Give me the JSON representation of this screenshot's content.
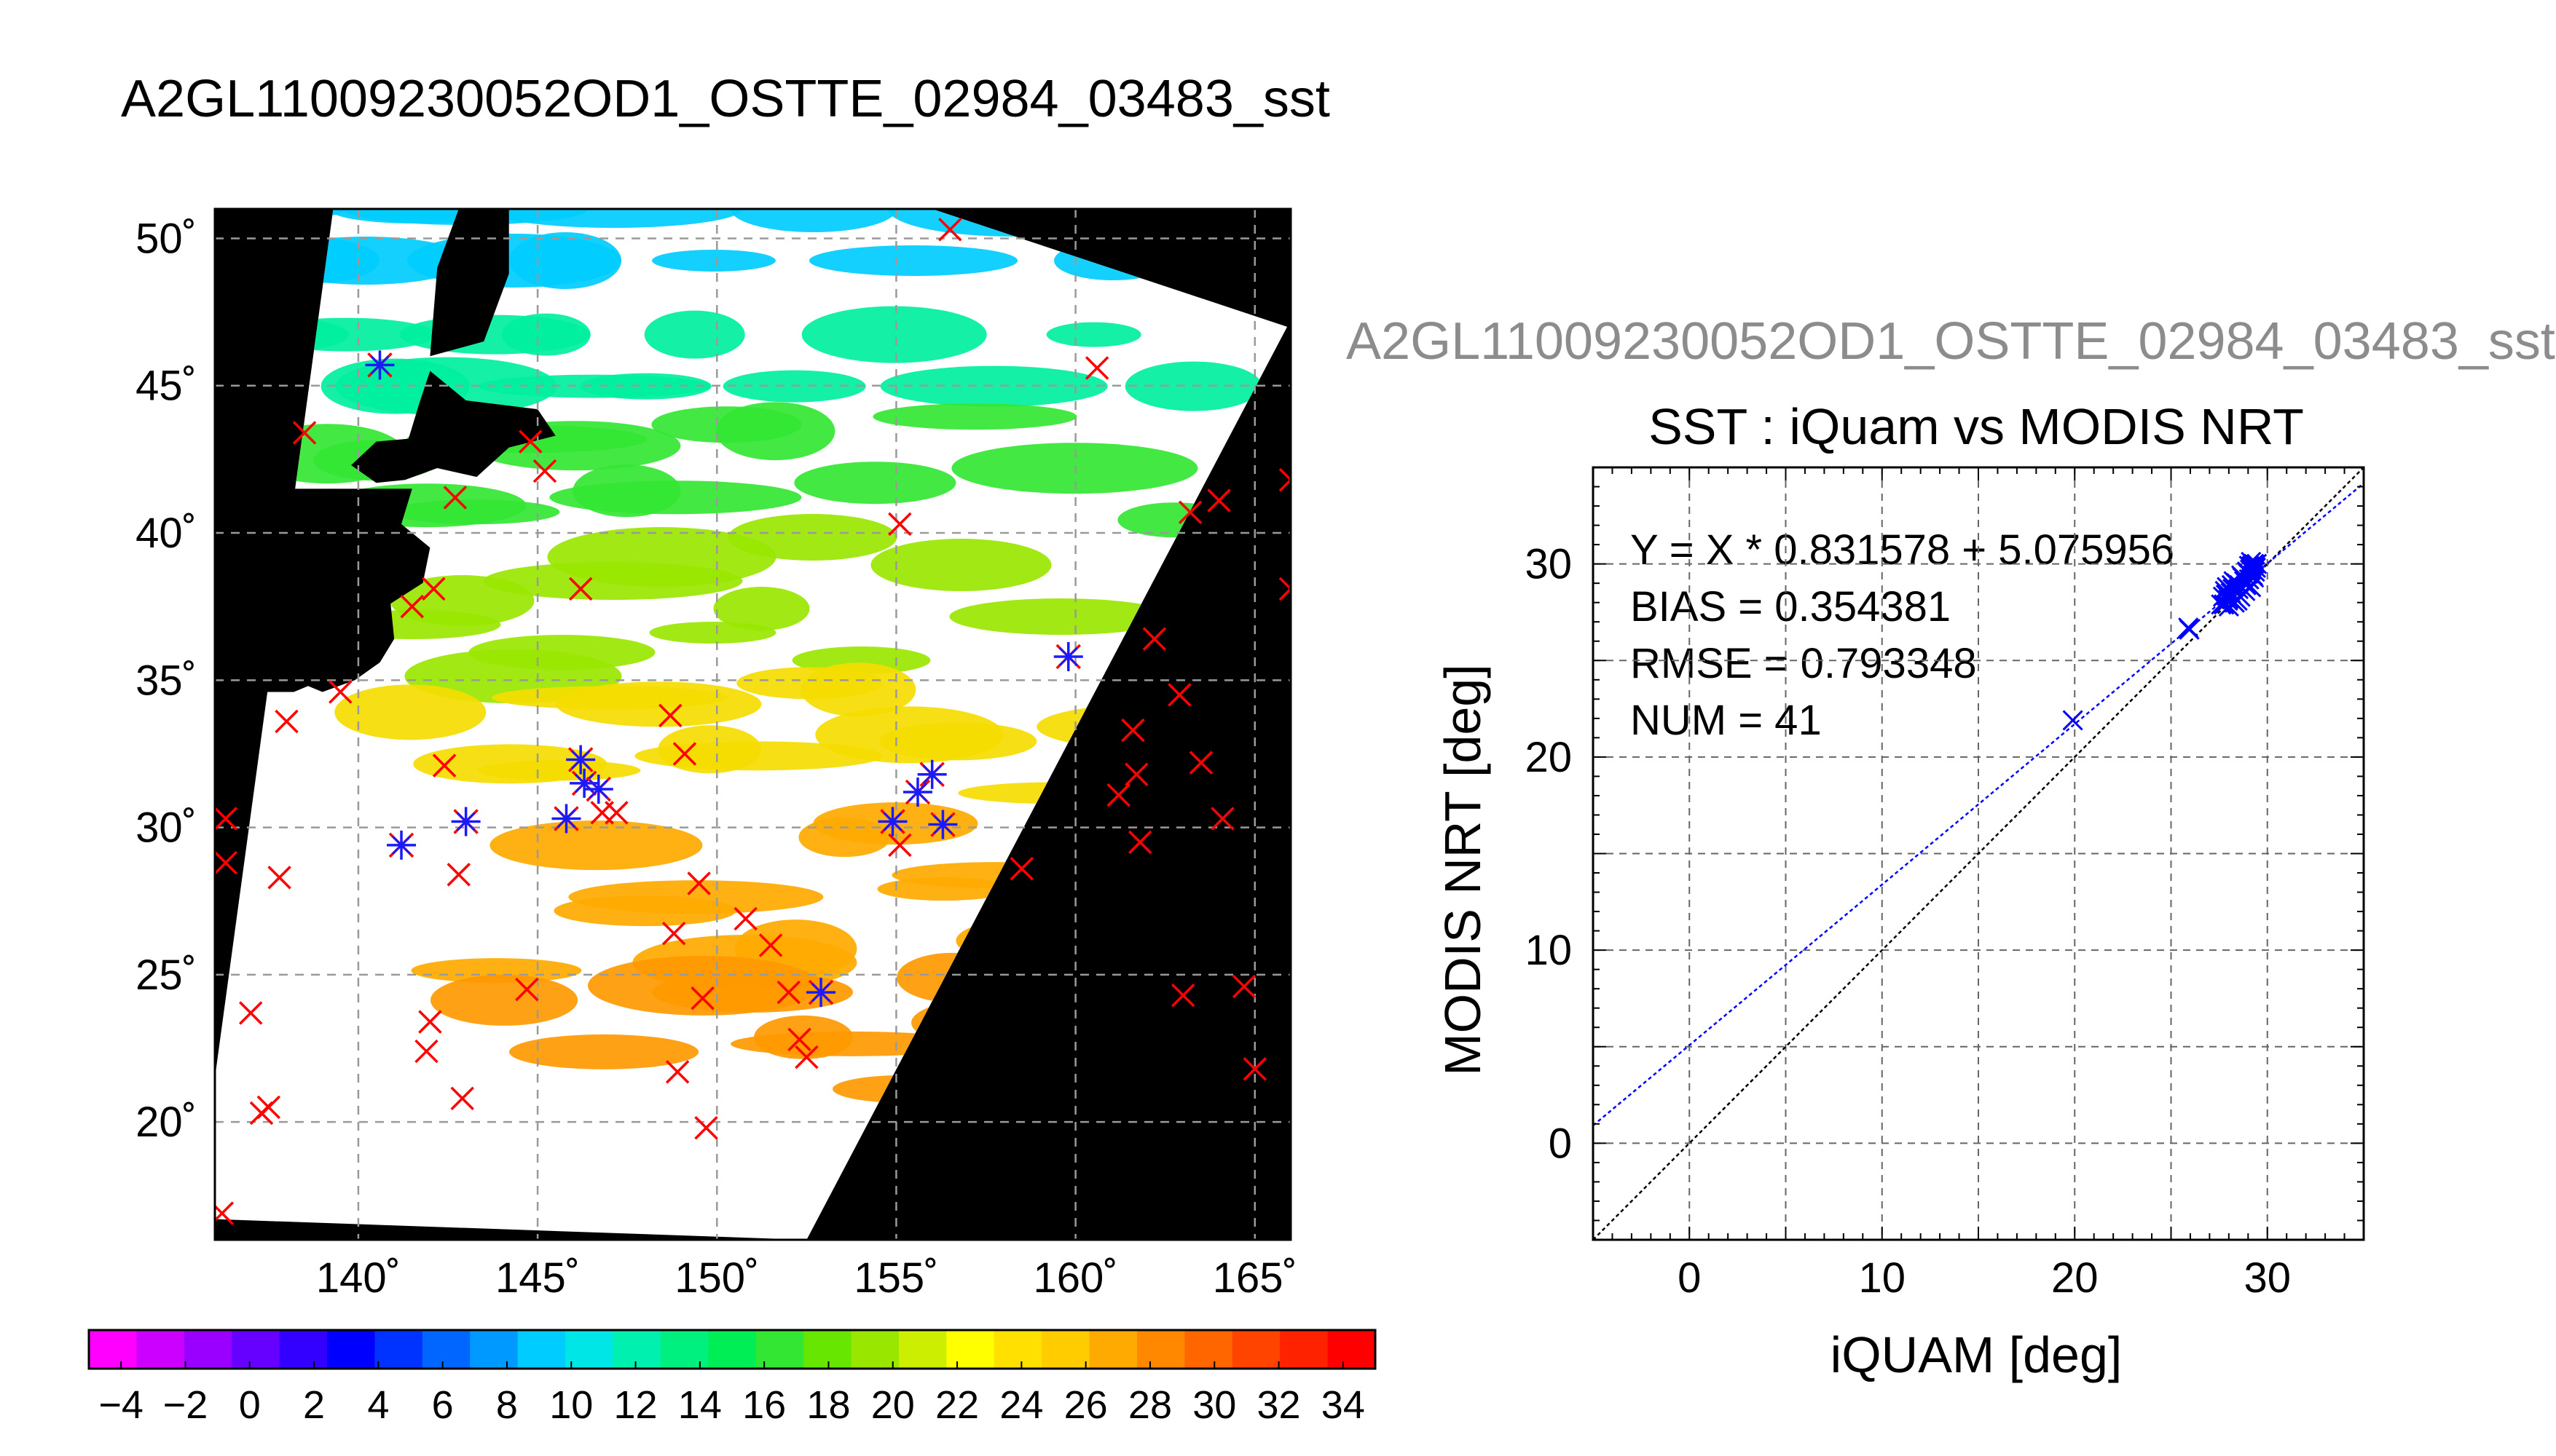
{
  "page": {
    "title": "A2GL11009230052OD1_OSTTE_02984_03483_sst",
    "scatter_subtitle": "A2GL11009230052OD1_OSTTE_02984_03483_sst"
  },
  "map": {
    "lon_ticks": [
      140,
      145,
      150,
      155,
      160,
      165
    ],
    "lat_ticks": [
      20,
      25,
      30,
      35,
      40,
      45,
      50
    ],
    "lon_range": [
      136,
      166
    ],
    "lat_range": [
      16,
      51
    ],
    "degree_symbol": "˚",
    "colors": {
      "land": "#000000",
      "no_data": "#000000",
      "cloud": "#ffffff",
      "grid": "#9a9a9a"
    },
    "sst_field_bands": [
      {
        "lat_max": 51,
        "lat_min": 47.5,
        "sst": 10,
        "color": "#00ccff"
      },
      {
        "lat_max": 47.5,
        "lat_min": 44,
        "sst": 16,
        "color": "#00f0a0"
      },
      {
        "lat_max": 44,
        "lat_min": 40,
        "sst": 20,
        "color": "#33e633"
      },
      {
        "lat_max": 40,
        "lat_min": 35,
        "sst": 24,
        "color": "#99e600"
      },
      {
        "lat_max": 35,
        "lat_min": 31,
        "sst": 27,
        "color": "#f5dc00"
      },
      {
        "lat_max": 31,
        "lat_min": 25,
        "sst": 29,
        "color": "#ffaa00"
      },
      {
        "lat_max": 25,
        "lat_min": 21,
        "sst": 30,
        "color": "#ff9900"
      }
    ],
    "matchups_x": [
      [
        136.3,
        28.8
      ],
      [
        136.3,
        30.3
      ],
      [
        136.2,
        16.9
      ],
      [
        137,
        23.7
      ],
      [
        137.3,
        20.3
      ],
      [
        137.5,
        20.5
      ],
      [
        137.8,
        28.3
      ],
      [
        138,
        33.6
      ],
      [
        138.5,
        43.4
      ],
      [
        139.5,
        34.6
      ],
      [
        141.5,
        37.5
      ],
      [
        142,
        23.4
      ],
      [
        141.9,
        22.4
      ],
      [
        142.1,
        38.1
      ],
      [
        142.4,
        32.1
      ],
      [
        142.7,
        41.2
      ],
      [
        142.8,
        28.4
      ],
      [
        142.9,
        20.8
      ],
      [
        144.7,
        24.5
      ],
      [
        144.8,
        43.1
      ],
      [
        145.2,
        42.1
      ],
      [
        146.2,
        38.1
      ],
      [
        146.8,
        30.5
      ],
      [
        147.2,
        30.5
      ],
      [
        148.7,
        33.8
      ],
      [
        149.1,
        32.5
      ],
      [
        148.8,
        26.4
      ],
      [
        148.9,
        21.7
      ],
      [
        149.5,
        28.1
      ],
      [
        149.6,
        24.2
      ],
      [
        149.7,
        19.8
      ],
      [
        150.8,
        26.9
      ],
      [
        151.5,
        26
      ],
      [
        152,
        24.4
      ],
      [
        152.3,
        22.8
      ],
      [
        152.5,
        22.2
      ],
      [
        155.1,
        40.3
      ],
      [
        155.1,
        29.4
      ],
      [
        156.5,
        50.3
      ],
      [
        158.5,
        28.6
      ],
      [
        160.6,
        45.6
      ],
      [
        161.2,
        31.1
      ],
      [
        161.6,
        33.3
      ],
      [
        161.7,
        31.8
      ],
      [
        161.8,
        29.5
      ],
      [
        162.2,
        36.4
      ],
      [
        162.9,
        34.5
      ],
      [
        163,
        24.3
      ],
      [
        163.2,
        40.7
      ],
      [
        163.5,
        32.2
      ],
      [
        164,
        41.1
      ],
      [
        164.1,
        30.3
      ],
      [
        164.7,
        24.6
      ],
      [
        165,
        21.8
      ],
      [
        166,
        41.8
      ],
      [
        166,
        38.1
      ]
    ],
    "matchups_star": [
      [
        140.6,
        45.7
      ],
      [
        141.2,
        29.4
      ],
      [
        143,
        30.2
      ],
      [
        145.8,
        30.3
      ],
      [
        146.2,
        32.3
      ],
      [
        146.3,
        31.5
      ],
      [
        146.7,
        31.3
      ],
      [
        152.9,
        24.4
      ],
      [
        154.9,
        30.2
      ],
      [
        155.6,
        31.2
      ],
      [
        156,
        31.8
      ],
      [
        156.3,
        30.1
      ],
      [
        159.8,
        35.8
      ]
    ]
  },
  "colorbar": {
    "ticks": [
      -4,
      -2,
      0,
      2,
      4,
      6,
      8,
      10,
      12,
      14,
      16,
      18,
      20,
      22,
      24,
      26,
      28,
      30,
      32,
      34
    ],
    "range": [
      -5,
      35
    ],
    "colors": [
      "#ff00ff",
      "#cc00ff",
      "#9900ff",
      "#6600ff",
      "#3300ff",
      "#0000ff",
      "#0033ff",
      "#0066ff",
      "#0099ff",
      "#00ccff",
      "#00e6e6",
      "#00f0b0",
      "#00f080",
      "#00ee55",
      "#33e633",
      "#66e600",
      "#99e600",
      "#ccee00",
      "#ffff00",
      "#ffe000",
      "#ffcc00",
      "#ffaa00",
      "#ff8800",
      "#ff6600",
      "#ff4400",
      "#ff2200",
      "#ff0000"
    ]
  },
  "chart_data": {
    "type": "scatter",
    "title": "SST : iQuam vs MODIS NRT",
    "xlabel": "iQUAM [deg]",
    "ylabel": "MODIS NRT [deg]",
    "xlim": [
      -5,
      35
    ],
    "ylim": [
      -5,
      35
    ],
    "xticks": [
      0,
      10,
      20,
      30
    ],
    "yticks": [
      0,
      10,
      20,
      30
    ],
    "grid": true,
    "annotations": [
      "Y = X * 0.831578 + 5.075956",
      "BIAS = 0.354381",
      "RMSE = 0.793348",
      "NUM = 41"
    ],
    "regression": {
      "slope": 0.831578,
      "intercept": 5.075956,
      "color": "#0000ff"
    },
    "identity_line": {
      "slope": 1,
      "intercept": 0,
      "color": "#000000"
    },
    "points": [
      [
        19.9,
        21.9
      ],
      [
        25.9,
        26.7
      ],
      [
        25.95,
        26.6
      ],
      [
        27.6,
        27.9
      ],
      [
        27.7,
        28.3
      ],
      [
        27.8,
        28.6
      ],
      [
        27.9,
        28.8
      ],
      [
        27.95,
        28.1
      ],
      [
        28.0,
        27.8
      ],
      [
        28.1,
        28.5
      ],
      [
        28.15,
        28.9
      ],
      [
        28.2,
        28.7
      ],
      [
        28.3,
        28.0
      ],
      [
        28.4,
        29.0
      ],
      [
        28.5,
        28.7
      ],
      [
        28.6,
        28.3
      ],
      [
        28.7,
        29.3
      ],
      [
        28.8,
        29.1
      ],
      [
        28.85,
        28.6
      ],
      [
        28.9,
        28.9
      ],
      [
        29.0,
        29.5
      ],
      [
        29.05,
        29.2
      ],
      [
        29.1,
        29.7
      ],
      [
        29.15,
        28.8
      ],
      [
        29.2,
        29.9
      ],
      [
        29.25,
        29.4
      ],
      [
        29.3,
        30.0
      ],
      [
        29.35,
        29.6
      ],
      [
        29.4,
        29.8
      ],
      [
        28.0,
        28.2
      ],
      [
        27.85,
        28.4
      ],
      [
        28.25,
        29.1
      ],
      [
        28.55,
        28.9
      ],
      [
        28.65,
        29.4
      ],
      [
        28.95,
        29.6
      ],
      [
        29.05,
        29.9
      ],
      [
        29.15,
        30.1
      ],
      [
        29.3,
        29.3
      ],
      [
        28.45,
        28.1
      ],
      [
        27.75,
        27.9
      ],
      [
        29.45,
        30.0
      ]
    ],
    "marker_color": "#0000ff"
  }
}
